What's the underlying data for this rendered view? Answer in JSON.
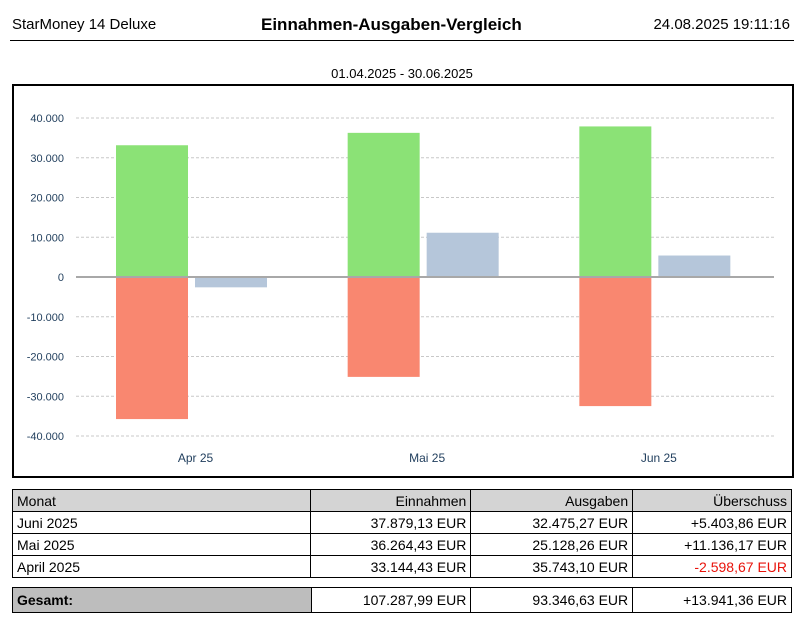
{
  "header": {
    "app": "StarMoney 14 Deluxe",
    "title": "Einnahmen-Ausgaben-Vergleich",
    "datetime": "24.08.2025 19:11:16"
  },
  "period": "01.04.2025 - 30.06.2025",
  "chart_data": {
    "type": "bar",
    "categories": [
      "Apr 25",
      "Mai 25",
      "Jun 25"
    ],
    "series": [
      {
        "values": [
          33144.43,
          36264.43,
          37879.13
        ],
        "color": "#8be276"
      },
      {
        "values": [
          -35743.1,
          -25128.26,
          -32475.27
        ],
        "color": "#f98770"
      },
      {
        "values": [
          -2598.67,
          11136.17,
          5403.86
        ],
        "color": "#b5c6da"
      }
    ],
    "ylim": [
      -40000,
      40000
    ],
    "yticks": [
      "40.000",
      "30.000",
      "20.000",
      "10.000",
      "0",
      "-10.000",
      "-20.000",
      "-30.000",
      "-40.000"
    ],
    "grid": true,
    "legend": "none"
  },
  "table": {
    "headers": [
      "Monat",
      "Einnahmen",
      "Ausgaben",
      "Überschuss"
    ],
    "rows": [
      {
        "month": "Juni 2025",
        "income": "37.879,13 EUR",
        "expenses": "32.475,27 EUR",
        "surplus": "+5.403,86 EUR"
      },
      {
        "month": "Mai 2025",
        "income": "36.264,43 EUR",
        "expenses": "25.128,26 EUR",
        "surplus": "+11.136,17 EUR"
      },
      {
        "month": "April 2025",
        "income": "33.144,43 EUR",
        "expenses": "35.743,10 EUR",
        "surplus": "-2.598,67 EUR"
      }
    ],
    "negative_color": "#e8130b"
  },
  "total": {
    "label": "Gesamt:",
    "income": "107.287,99 EUR",
    "expenses": "93.346,63 EUR",
    "surplus": "+13.941,36 EUR"
  }
}
